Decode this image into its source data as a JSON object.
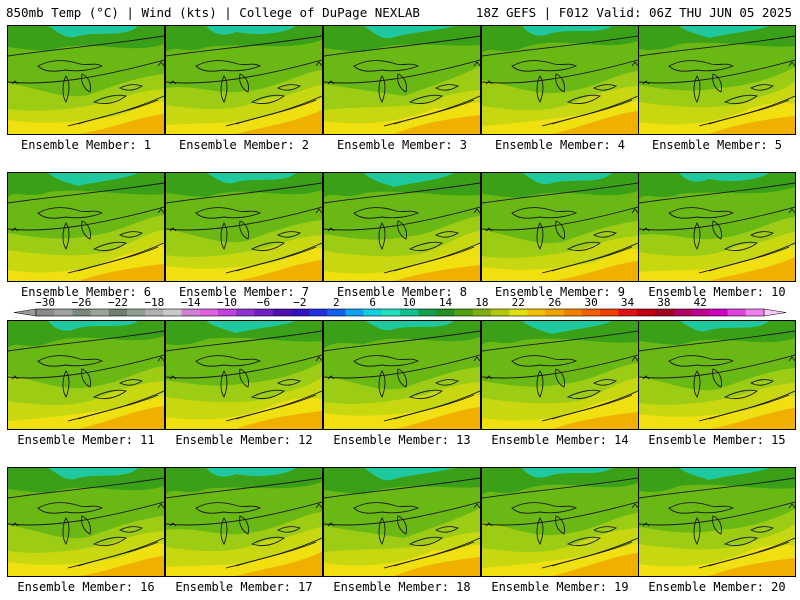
{
  "header": {
    "left": "850mb Temp (°C) | Wind (kts) | College of DuPage NEXLAB",
    "right": "18Z GEFS | F012 Valid: 06Z THU JUN 05 2025"
  },
  "members": [
    "Ensemble Member: 1",
    "Ensemble Member: 2",
    "Ensemble Member: 3",
    "Ensemble Member: 4",
    "Ensemble Member: 5",
    "Ensemble Member: 6",
    "Ensemble Member: 7",
    "Ensemble Member: 8",
    "Ensemble Member: 9",
    "Ensemble Member: 10",
    "Ensemble Member: 11",
    "Ensemble Member: 12",
    "Ensemble Member: 13",
    "Ensemble Member: 14",
    "Ensemble Member: 15",
    "Ensemble Member: 16",
    "Ensemble Member: 17",
    "Ensemble Member: 18",
    "Ensemble Member: 19",
    "Ensemble Member: 20"
  ],
  "colorbar": {
    "tick_labels": [
      "−30",
      "−26",
      "−22",
      "−18",
      "−14",
      "−10",
      "−6",
      "−2",
      "2",
      "6",
      "10",
      "14",
      "18",
      "22",
      "26",
      "30",
      "34",
      "38",
      "42"
    ],
    "colors": [
      "#8a8a8a",
      "#a0a0a0",
      "#7a8a7a",
      "#9aa59a",
      "#6f7f6f",
      "#8f9f8f",
      "#b0b0b0",
      "#c8c8c8",
      "#d080d0",
      "#e060e0",
      "#c040e0",
      "#9030d0",
      "#7020c0",
      "#5010b0",
      "#3010c0",
      "#2030e0",
      "#1060f0",
      "#10a0f0",
      "#10d0e0",
      "#20e0c0",
      "#10c090",
      "#10a050",
      "#209020",
      "#50a010",
      "#80b010",
      "#b0c810",
      "#e0e010",
      "#f0c000",
      "#f0a000",
      "#f08000",
      "#f06000",
      "#f04000",
      "#e01010",
      "#c00010",
      "#a00020",
      "#b00060",
      "#c00090",
      "#d000c0",
      "#e040e0",
      "#f080f0"
    ]
  },
  "map_colors": {
    "teal": "#20c8a0",
    "dgreen": "#3aa018",
    "green": "#6ab814",
    "lgreen": "#9ccc14",
    "ygreen": "#c8d810",
    "yellow": "#f0e010",
    "orange": "#f0b000"
  }
}
